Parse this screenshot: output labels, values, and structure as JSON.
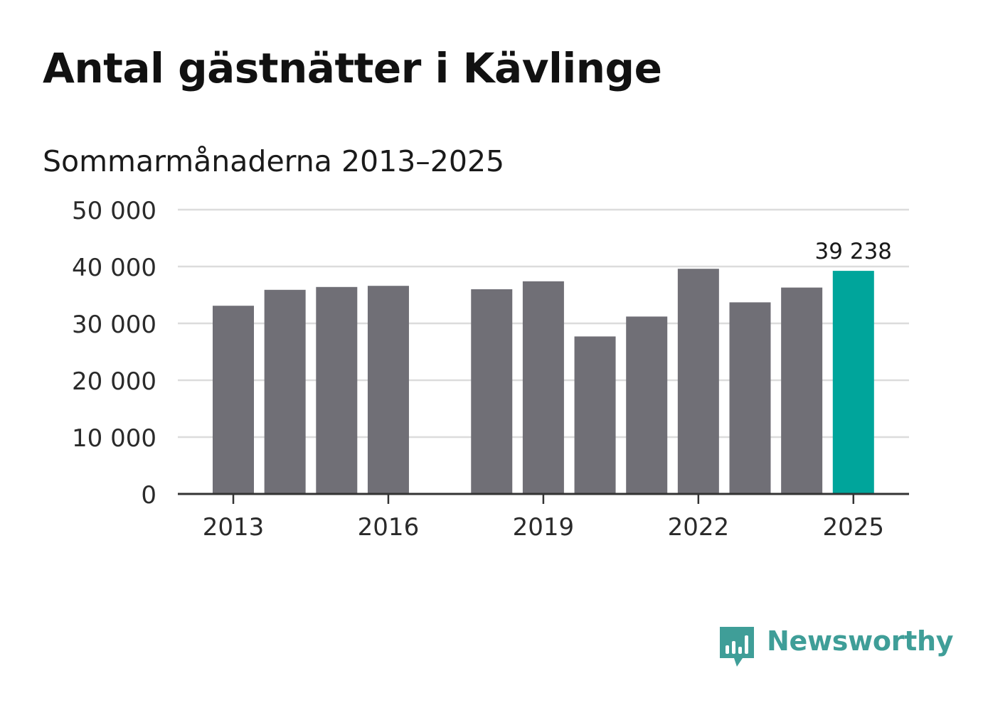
{
  "title": "Antal gästnätter i Kävlinge",
  "subtitle": "Sommarmånaderna 2013–2025",
  "brand": {
    "name": "Newsworthy",
    "color": "#3f9e98",
    "icon": "chart-bubble-icon"
  },
  "colors": {
    "bar": "#706f76",
    "highlight": "#00a59b",
    "grid": "#dcdcdc",
    "axis": "#333333",
    "text": "#2a2a2a"
  },
  "chart_data": {
    "type": "bar",
    "title": "Antal gästnätter i Kävlinge",
    "subtitle": "Sommarmånaderna 2013–2025",
    "xlabel": "",
    "ylabel": "",
    "ylim": [
      0,
      50000
    ],
    "yticks": [
      {
        "value": 0,
        "label": "0"
      },
      {
        "value": 10000,
        "label": "10 000"
      },
      {
        "value": 20000,
        "label": "20 000"
      },
      {
        "value": 30000,
        "label": "30 000"
      },
      {
        "value": 40000,
        "label": "40 000"
      },
      {
        "value": 50000,
        "label": "50 000"
      }
    ],
    "xticks": [
      "2013",
      "2016",
      "2019",
      "2022",
      "2025"
    ],
    "categories": [
      "2013",
      "2014",
      "2015",
      "2016",
      "2017",
      "2018",
      "2019",
      "2020",
      "2021",
      "2022",
      "2023",
      "2024",
      "2025"
    ],
    "values": [
      33100,
      35900,
      36400,
      36600,
      null,
      36000,
      37400,
      27700,
      31200,
      39600,
      33700,
      36300,
      39238
    ],
    "highlight_index": 12,
    "data_labels": [
      {
        "index": 12,
        "label": "39 238"
      }
    ],
    "grid": true,
    "legend": "none"
  }
}
